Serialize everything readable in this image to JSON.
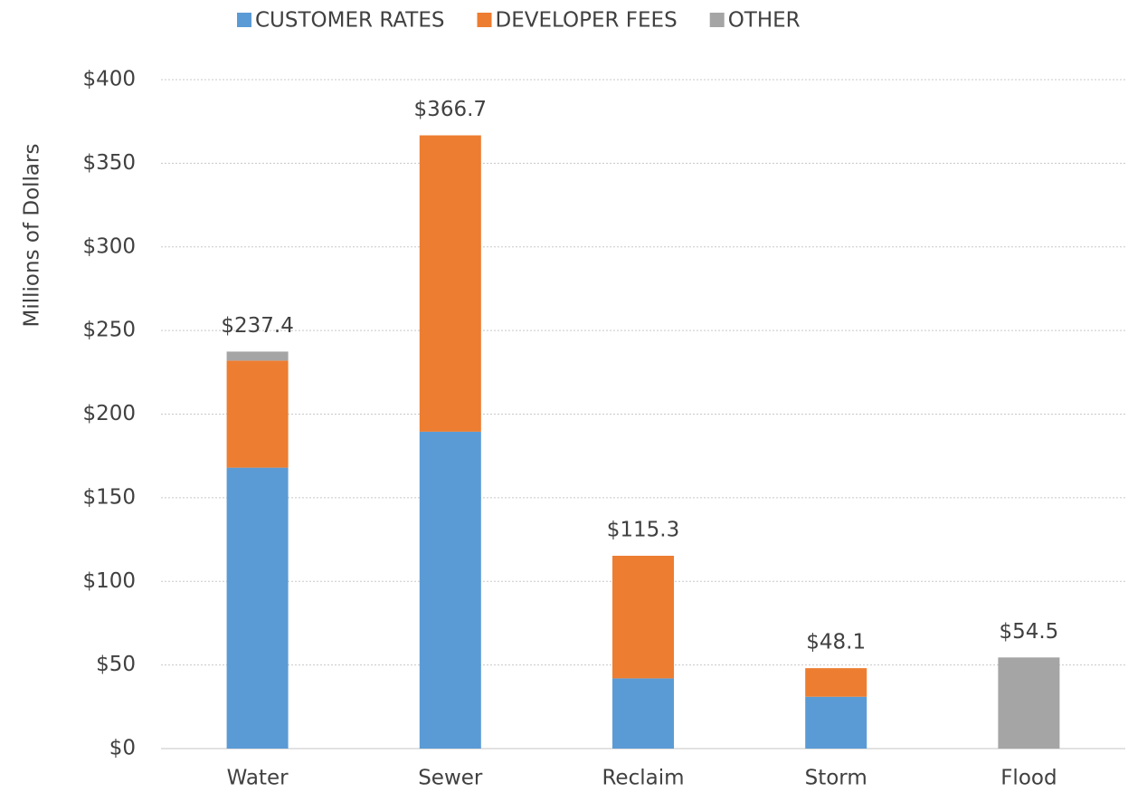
{
  "chart_data": {
    "type": "stacked_bar",
    "y_label": "Millions of Dollars",
    "categories": [
      "Water",
      "Sewer",
      "Reclaim",
      "Storm",
      "Flood"
    ],
    "series": [
      {
        "name": "CUSTOMER RATES",
        "color": "#5b9bd5",
        "values": [
          168,
          189.5,
          42,
          31,
          null
        ]
      },
      {
        "name": "DEVELOPER FEES",
        "color": "#ed7d31",
        "values": [
          64,
          177.2,
          73.3,
          17.1,
          null
        ]
      },
      {
        "name": "OTHER",
        "color": "#a5a5a5",
        "values": [
          5.4,
          null,
          null,
          null,
          54.5
        ]
      }
    ],
    "totals": {
      "values": [
        237.4,
        366.7,
        115.3,
        48.1,
        54.5
      ],
      "value_labels": [
        "$237.4",
        "$366.7",
        "$115.3",
        "$48.1",
        "$54.5"
      ]
    },
    "ylim": [
      0,
      400
    ],
    "yticks": [
      {
        "value": 0,
        "label": "$0"
      },
      {
        "value": 50,
        "label": "$50"
      },
      {
        "value": 100,
        "label": "$100"
      },
      {
        "value": 150,
        "label": "$150"
      },
      {
        "value": 200,
        "label": "$200"
      },
      {
        "value": 250,
        "label": "$250"
      },
      {
        "value": 300,
        "label": "$300"
      },
      {
        "value": 350,
        "label": "$350"
      },
      {
        "value": 400,
        "label": "$400"
      }
    ],
    "grid": true,
    "legend": "top"
  }
}
